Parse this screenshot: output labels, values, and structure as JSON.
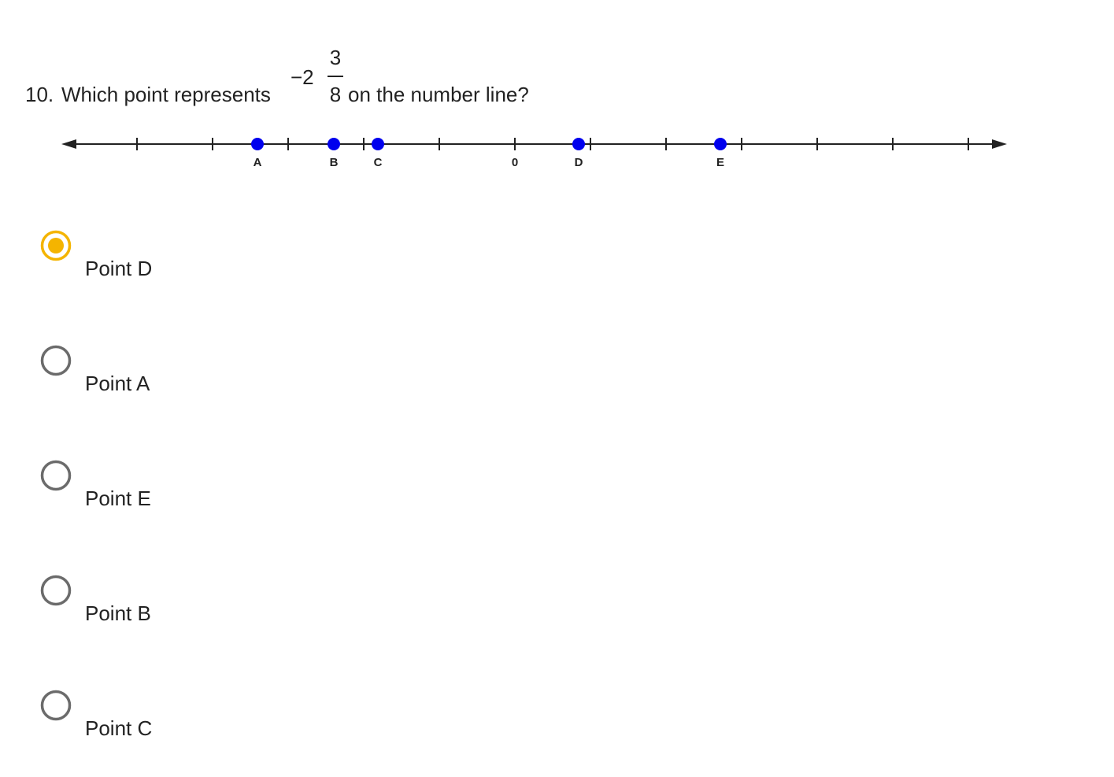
{
  "question": {
    "number": "10.",
    "text_before": "Which point represents",
    "mixed_number": {
      "sign_whole": "−2",
      "numerator": "3",
      "denominator": "8"
    },
    "text_after": "on the number line?"
  },
  "number_line": {
    "labels": [
      "A",
      "B",
      "C",
      "0",
      "D",
      "E"
    ]
  },
  "options": [
    {
      "label": "Point D",
      "selected": true
    },
    {
      "label": "Point A",
      "selected": false
    },
    {
      "label": "Point E",
      "selected": false
    },
    {
      "label": "Point B",
      "selected": false
    },
    {
      "label": "Point C",
      "selected": false
    }
  ]
}
